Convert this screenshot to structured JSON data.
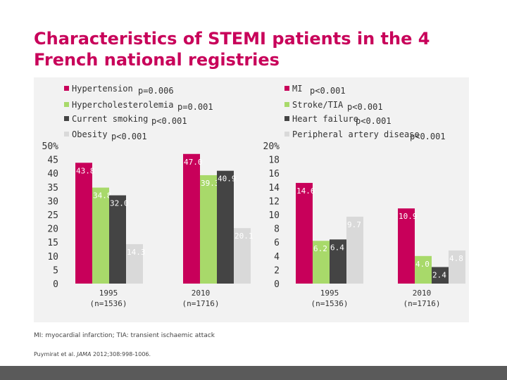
{
  "title": "Characteristics of STEMI patients in the 4 French national registries",
  "footnote": "MI: myocardial infarction; TIA: transient ischaemic attack",
  "citation": {
    "authors": "Puymirat et al.",
    "journal": "JAMA",
    "ref": "2012;308:998-1006."
  },
  "colors": {
    "title": "#c8005a",
    "series1": "#c8005a",
    "series2": "#a8d96a",
    "series3": "#444444",
    "series4": "#d9d9d9"
  },
  "chart_data": [
    {
      "type": "bar",
      "categories": [
        "1995\n(n=1536)",
        "2010\n(n=1716)"
      ],
      "ylim": [
        0,
        50
      ],
      "yticks": [
        "50%",
        "45",
        "40",
        "35",
        "30",
        "25",
        "20",
        "15",
        "10",
        "5",
        "0"
      ],
      "series": [
        {
          "name": "Hypertension",
          "p": "p=0.006",
          "values": [
            43.8,
            47.0
          ],
          "labels": [
            "43.8",
            "47.0"
          ]
        },
        {
          "name": "Hypercholesterolemia",
          "p": "p=0.001",
          "values": [
            34.8,
            39.3
          ],
          "labels": [
            "34.8",
            "39.3"
          ]
        },
        {
          "name": "Current smoking",
          "p": "p<0.001",
          "values": [
            32.0,
            40.9
          ],
          "labels": [
            "32.0",
            "40.9"
          ]
        },
        {
          "name": "Obesity",
          "p": "p<0.001",
          "values": [
            14.3,
            20.1
          ],
          "labels": [
            "14.3",
            "20.1"
          ]
        }
      ],
      "grid": false,
      "legend": "top-left"
    },
    {
      "type": "bar",
      "categories": [
        "1995\n(n=1536)",
        "2010\n(n=1716)"
      ],
      "ylim": [
        0,
        20
      ],
      "yticks": [
        "20%",
        "18",
        "16",
        "14",
        "12",
        "10",
        "8",
        "6",
        "4",
        "2",
        "0"
      ],
      "series": [
        {
          "name": "MI",
          "p": "p<0.001",
          "values": [
            14.6,
            10.9
          ],
          "labels": [
            "14.6",
            "10.9"
          ]
        },
        {
          "name": "Stroke/TIA",
          "p": "p<0.001",
          "values": [
            6.2,
            4.0
          ],
          "labels": [
            "6.2",
            "4.0"
          ]
        },
        {
          "name": "Heart failure",
          "p": "p<0.001",
          "values": [
            6.4,
            2.4
          ],
          "labels": [
            "6.4",
            "2.4"
          ]
        },
        {
          "name": "Peripheral artery disease",
          "p": "p<0.001",
          "values": [
            9.7,
            4.8
          ],
          "labels": [
            "9.7",
            "4.8"
          ]
        }
      ],
      "grid": false,
      "legend": "top-right"
    }
  ]
}
